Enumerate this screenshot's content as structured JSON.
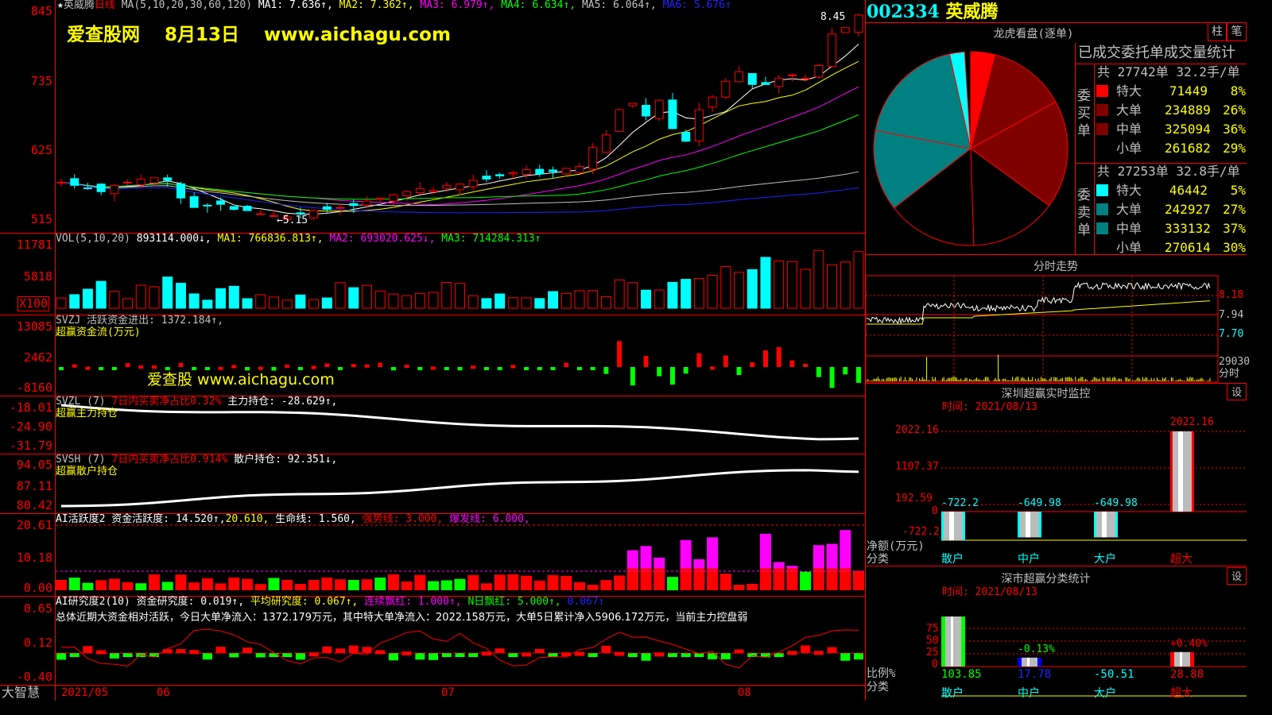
{
  "stock": {
    "code": "002334",
    "name": "英威腾",
    "period": "日线"
  },
  "watermark": {
    "main": "爱查股网　 8月13日　 www.aichagu.com",
    "mid": "爱查股 www.aichagu.com"
  },
  "price_panel": {
    "ma_label": "MA(5,10,20,30,60,120)",
    "ma": [
      {
        "k": "MA1: ",
        "v": "7.636↑,"
      },
      {
        "k": "MA2: ",
        "v": "7.362↑,"
      },
      {
        "k": "MA3: ",
        "v": "6.979↑,"
      },
      {
        "k": "MA4: ",
        "v": "6.634↑,"
      },
      {
        "k": "MA5: ",
        "v": "6.064↑,"
      },
      {
        "k": "MA6: ",
        "v": "5.676↑"
      }
    ],
    "axis": [
      "845",
      "735",
      "625",
      "515"
    ],
    "high_label": "8.45",
    "low_label": "←5.15"
  },
  "vol_panel": {
    "label": "VOL(5,10,20)",
    "value": "893114.000↓,",
    "ma1": "MA1: 766836.813↑,",
    "ma2": "MA2: 693020.625↓,",
    "ma3": "MA3: 714284.313↑",
    "axis": [
      "11781",
      "5818"
    ],
    "unit": "X100"
  },
  "svzj": {
    "label": "SVZJ  活跃资金进出: 1372.184↑,",
    "sub": "超赢资金流(万元)",
    "axis": [
      "13085",
      "2462",
      "-8160"
    ]
  },
  "svzl": {
    "label": "SVZL (7) ",
    "red": "7日内买卖净占比0.32%",
    "rest": " 主力持仓: -28.629↑,",
    "sub": "超赢主力持仓",
    "axis": [
      "-18.01",
      "-24.90",
      "-31.79"
    ]
  },
  "svsh": {
    "label": "SVSH (7) ",
    "red": "7日内买卖净占比0.914%",
    "rest": " 散户持仓: 92.351↓,",
    "sub": "超赢散户持仓",
    "axis": [
      "94.05",
      "87.11",
      "80.42"
    ]
  },
  "ai_active": {
    "label": "AI活跃度2 资金活跃度: 14.520↑,",
    "v2": "20.610,",
    "v3": " 生命线: 1.560,",
    "v4": " 强势线: 3.000,",
    "v5": " 爆发线: 6.000,",
    "axis": [
      "20.61",
      "10.18",
      "0.00"
    ]
  },
  "ai_research": {
    "label": "AI研究度2(10) 资金研究度: 0.019↑,",
    "v2": " 平均研究度: 0.067↑,",
    "v3": " 连续飘红: 1.000↑,",
    "v4": " N日飘红: 5.000↑,",
    "v5": " 0.067↑",
    "summary": "总体近期大资金相对活跃，今日大单净流入：1372.179万元，其中特大单净流入：2022.158万元，大单5日累计净入5906.172万元，当前主力控盘弱",
    "axis": [
      "0.65",
      "0.12",
      "-0.40"
    ]
  },
  "date_axis": {
    "brand": "大智慧",
    "labels": [
      "2021/05",
      "06",
      "07",
      "08"
    ]
  },
  "dragon": {
    "title": "龙虎看盘(逐单)",
    "btn1": "柱",
    "btn2": "笔",
    "stat_title": "已成交委托单成交量统计",
    "buy": {
      "side": "委买单",
      "total": "共 27742单 32.2手/单",
      "rows": [
        {
          "name": "特大",
          "val": "71449",
          "pct": "8%",
          "color": "#ff0000"
        },
        {
          "name": "大单",
          "val": "234889",
          "pct": "26%",
          "color": "#800000"
        },
        {
          "name": "中单",
          "val": "325094",
          "pct": "36%",
          "color": "#800000"
        },
        {
          "name": "小单",
          "val": "261682",
          "pct": "29%",
          "color": "#000000"
        }
      ]
    },
    "sell": {
      "side": "委卖单",
      "total": "共 27253单 32.8手/单",
      "rows": [
        {
          "name": "特大",
          "val": "46442",
          "pct": "5%",
          "color": "#00ffff"
        },
        {
          "name": "大单",
          "val": "242927",
          "pct": "27%",
          "color": "#008080"
        },
        {
          "name": "中单",
          "val": "333132",
          "pct": "37%",
          "color": "#008080"
        },
        {
          "name": "小单",
          "val": "270614",
          "pct": "30%",
          "color": "#000000"
        }
      ]
    }
  },
  "intraday": {
    "title": "分时走势",
    "axis": [
      "8.18",
      "7.94",
      "7.70"
    ],
    "vol_label": "29030",
    "vol_unit": "分时"
  },
  "sz_monitor": {
    "title": "深圳超赢实时监控",
    "settings": "设",
    "time": "时间: 2021/08/13",
    "axis": [
      "2022.16",
      "1107.37",
      "192.59",
      "0",
      "-722.2"
    ],
    "ylabel": "净额(万元)",
    "xlabel": "分类",
    "bars": [
      {
        "name": "散户",
        "value": -722.2,
        "label": "-722.2"
      },
      {
        "name": "中户",
        "value": -649.98,
        "label": "-649.98"
      },
      {
        "name": "大户",
        "value": -649.98,
        "label": "-649.98"
      },
      {
        "name": "超大",
        "value": 2022.16,
        "label": "2022.16"
      }
    ]
  },
  "sz_stats": {
    "title": "深市超赢分类统计",
    "settings": "设",
    "time": "时间: 2021/08/13",
    "axis": [
      "75",
      "50",
      "25",
      "0"
    ],
    "ylabel": "比例%",
    "xlabel": "分类",
    "bars": [
      {
        "name": "散户",
        "value": "103.85",
        "pct": 103.85,
        "color": "#00ff00"
      },
      {
        "name": "中户",
        "value": "17.78",
        "pct": 17.78,
        "color": "#0000ff",
        "note": "-0.13%"
      },
      {
        "name": "大户",
        "value": "-50.51",
        "pct": 0,
        "color": "#00ffff"
      },
      {
        "name": "超大",
        "value": "28.88",
        "pct": 28.88,
        "color": "#ff0000",
        "note": "+0.40%"
      }
    ]
  }
}
